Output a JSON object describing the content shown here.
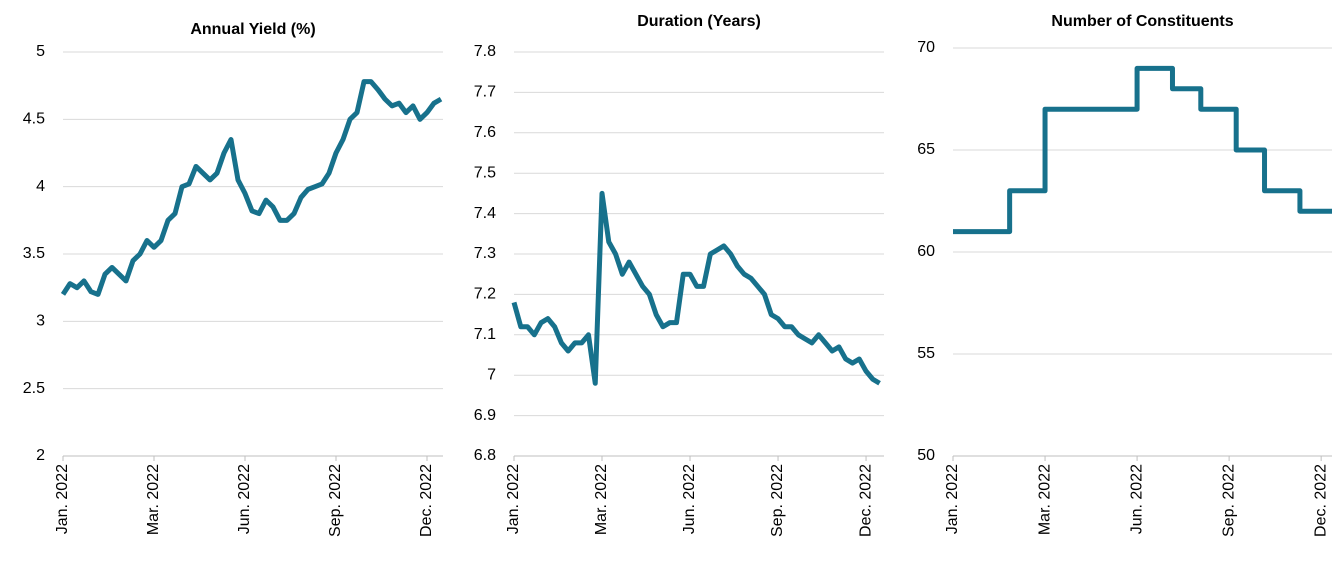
{
  "chart_data": [
    {
      "type": "line",
      "title": "Annual Yield (%)",
      "color": "#17718c",
      "grid": true,
      "categories": [
        "Jan. 2022",
        null,
        null,
        null,
        null,
        null,
        null,
        null,
        null,
        null,
        null,
        null,
        null,
        "Mar. 2022",
        null,
        null,
        null,
        null,
        null,
        null,
        null,
        null,
        null,
        null,
        null,
        null,
        "Jun. 2022",
        null,
        null,
        null,
        null,
        null,
        null,
        null,
        null,
        null,
        null,
        null,
        null,
        "Sep. 2022",
        null,
        null,
        null,
        null,
        null,
        null,
        null,
        null,
        null,
        null,
        null,
        null,
        "Dec. 2022",
        null,
        null
      ],
      "values": [
        3.2,
        3.28,
        3.25,
        3.3,
        3.22,
        3.2,
        3.35,
        3.4,
        3.35,
        3.3,
        3.45,
        3.5,
        3.6,
        3.55,
        3.6,
        3.75,
        3.8,
        4.0,
        4.02,
        4.15,
        4.1,
        4.05,
        4.1,
        4.25,
        4.35,
        4.05,
        3.95,
        3.82,
        3.8,
        3.9,
        3.85,
        3.75,
        3.75,
        3.8,
        3.92,
        3.98,
        4.0,
        4.02,
        4.1,
        4.25,
        4.35,
        4.5,
        4.55,
        4.78,
        4.78,
        4.72,
        4.65,
        4.6,
        4.62,
        4.55,
        4.6,
        4.5,
        4.55,
        4.62,
        4.65
      ],
      "ylim": [
        2,
        5
      ],
      "yticks": [
        2,
        2.5,
        3,
        3.5,
        4,
        4.5,
        5
      ]
    },
    {
      "type": "line",
      "title": "Duration (Years)",
      "color": "#17718c",
      "grid": true,
      "categories": [
        "Jan. 2022",
        null,
        null,
        null,
        null,
        null,
        null,
        null,
        null,
        null,
        null,
        null,
        null,
        "Mar. 2022",
        null,
        null,
        null,
        null,
        null,
        null,
        null,
        null,
        null,
        null,
        null,
        null,
        "Jun. 2022",
        null,
        null,
        null,
        null,
        null,
        null,
        null,
        null,
        null,
        null,
        null,
        null,
        "Sep. 2022",
        null,
        null,
        null,
        null,
        null,
        null,
        null,
        null,
        null,
        null,
        null,
        null,
        "Dec. 2022",
        null,
        null
      ],
      "values": [
        7.18,
        7.12,
        7.12,
        7.1,
        7.13,
        7.14,
        7.12,
        7.08,
        7.06,
        7.08,
        7.08,
        7.1,
        6.98,
        7.45,
        7.33,
        7.3,
        7.25,
        7.28,
        7.25,
        7.22,
        7.2,
        7.15,
        7.12,
        7.13,
        7.13,
        7.25,
        7.25,
        7.22,
        7.22,
        7.3,
        7.31,
        7.32,
        7.3,
        7.27,
        7.25,
        7.24,
        7.22,
        7.2,
        7.15,
        7.14,
        7.12,
        7.12,
        7.1,
        7.09,
        7.08,
        7.1,
        7.08,
        7.06,
        7.07,
        7.04,
        7.03,
        7.04,
        7.01,
        6.99,
        6.98
      ],
      "ylim": [
        6.8,
        7.8
      ],
      "yticks": [
        6.8,
        6.9,
        7,
        7.1,
        7.2,
        7.3,
        7.4,
        7.5,
        7.6,
        7.7,
        7.8
      ]
    },
    {
      "type": "step",
      "title": "Number of Constituents",
      "color": "#17718c",
      "grid": true,
      "categories": [
        "Jan. 2022",
        null,
        null,
        null,
        null,
        null,
        null,
        null,
        null,
        null,
        null,
        null,
        null,
        "Mar. 2022",
        null,
        null,
        null,
        null,
        null,
        null,
        null,
        null,
        null,
        null,
        null,
        null,
        "Jun. 2022",
        null,
        null,
        null,
        null,
        null,
        null,
        null,
        null,
        null,
        null,
        null,
        null,
        "Sep. 2022",
        null,
        null,
        null,
        null,
        null,
        null,
        null,
        null,
        null,
        null,
        null,
        null,
        "Dec. 2022",
        null,
        null
      ],
      "values": [
        61,
        61,
        61,
        61,
        61,
        61,
        61,
        61,
        63,
        63,
        63,
        63,
        63,
        67,
        67,
        67,
        67,
        67,
        67,
        67,
        67,
        67,
        67,
        67,
        67,
        67,
        69,
        69,
        69,
        69,
        69,
        68,
        68,
        68,
        68,
        67,
        67,
        67,
        67,
        67,
        65,
        65,
        65,
        65,
        63,
        63,
        63,
        63,
        63,
        62,
        62,
        62,
        62,
        62,
        62
      ],
      "ylim": [
        50,
        70
      ],
      "yticks": [
        50,
        55,
        60,
        65,
        70
      ]
    }
  ]
}
